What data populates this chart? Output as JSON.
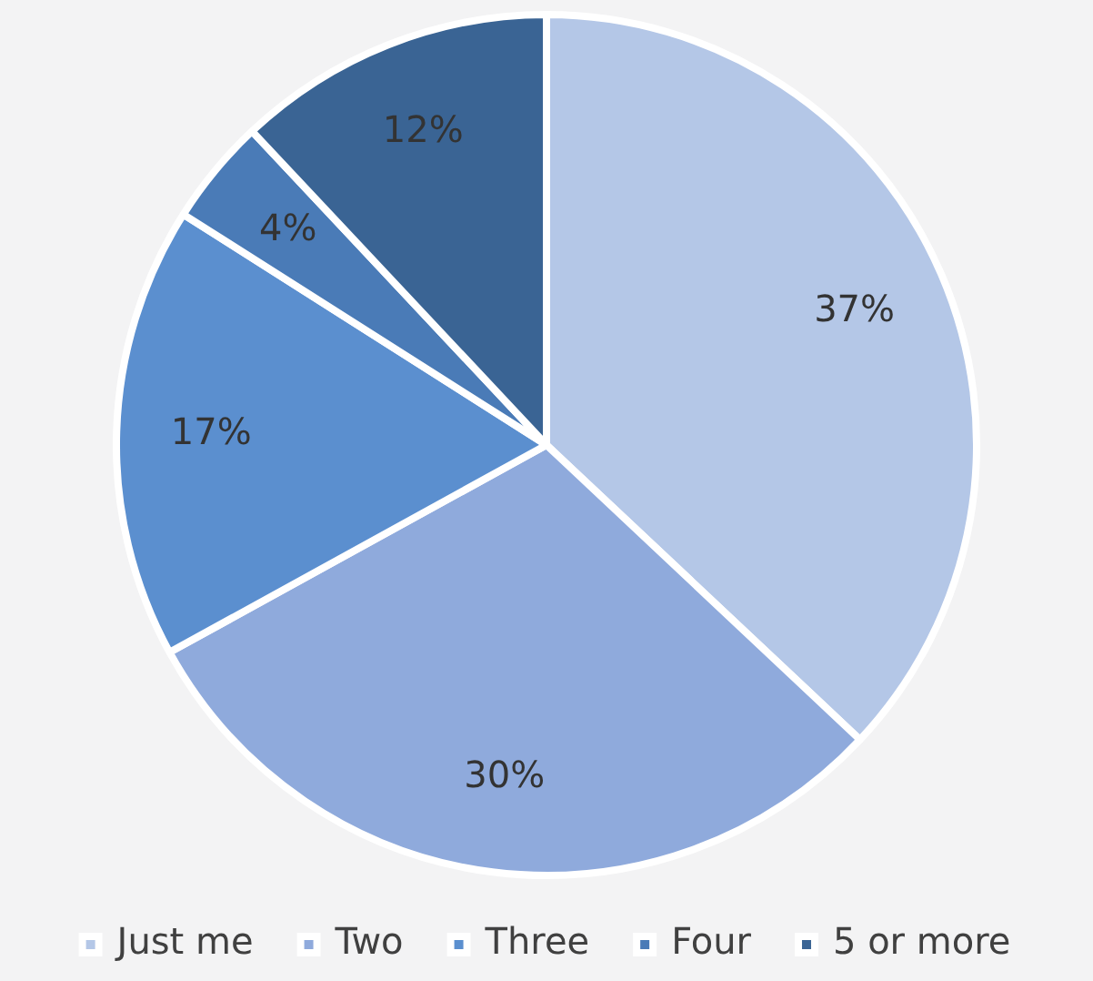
{
  "chart_data": {
    "type": "pie",
    "categories": [
      "Just me",
      "Two",
      "Three",
      "Four",
      "5 or more"
    ],
    "values": [
      37,
      30,
      17,
      4,
      12
    ],
    "colors": [
      "#b4c7e7",
      "#8faadc",
      "#5b8fcf",
      "#4a7bb7",
      "#3a6494"
    ],
    "value_labels": [
      "37%",
      "30%",
      "17%",
      "4%",
      "12%"
    ],
    "legend": "bottom"
  }
}
